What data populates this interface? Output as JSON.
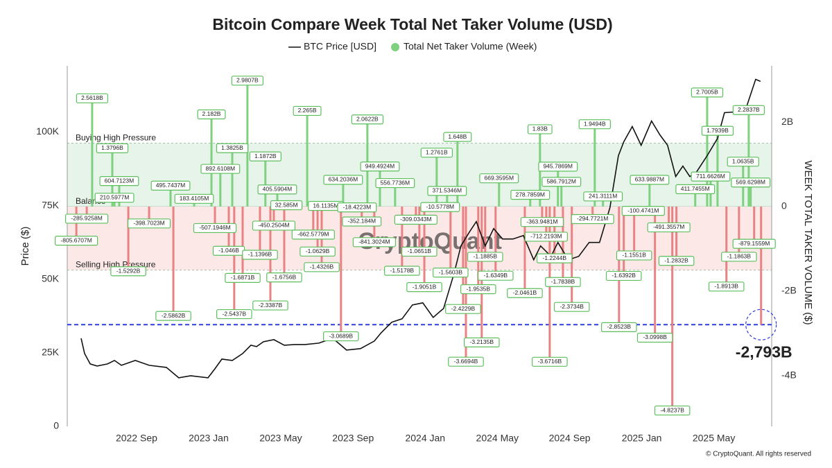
{
  "chart_data": {
    "type": "combo",
    "title": "Bitcoin Compare Week Total Net Taker Volume (USD)",
    "ylabel": "Price ($)",
    "y2label": "WEEK TOTAL TAKER VOLUME ($)",
    "xlim": [
      2022.347,
      2025.6
    ],
    "xticks": [
      {
        "value": 2022.667,
        "label": "2022 Sep"
      },
      {
        "value": 2023.0,
        "label": "2023 Jan"
      },
      {
        "value": 2023.333,
        "label": "2023 May"
      },
      {
        "value": 2023.667,
        "label": "2023 Sep"
      },
      {
        "value": 2024.0,
        "label": "2024 Jan"
      },
      {
        "value": 2024.333,
        "label": "2024 May"
      },
      {
        "value": 2024.667,
        "label": "2024 Sep"
      },
      {
        "value": 2025.0,
        "label": "2025 Jan"
      },
      {
        "value": 2025.333,
        "label": "2025 May"
      }
    ],
    "ylim": [
      0,
      122500
    ],
    "yticks": [
      0,
      {
        "value": 25000,
        "label": "25K"
      },
      {
        "value": 50000,
        "label": "50K"
      },
      {
        "value": 75000,
        "label": "75K"
      },
      {
        "value": 100000,
        "label": "100K"
      }
    ],
    "y2lim": [
      -5.2,
      3.33
    ],
    "y2ticks": [
      {
        "value": 2,
        "label": "2B"
      },
      0,
      {
        "value": -2,
        "label": "-2B"
      },
      {
        "value": -4,
        "label": "-4B"
      }
    ],
    "legend": "top",
    "series": [
      {
        "name": "BTC Price [USD]",
        "type": "line",
        "color": "#111111",
        "x": [
          2022.411,
          2022.427,
          2022.453,
          2022.485,
          2022.533,
          2022.565,
          2022.597,
          2022.661,
          2022.725,
          2022.805,
          2022.862,
          2022.917,
          2022.997,
          2023.029,
          2023.061,
          2023.109,
          2023.157,
          2023.195,
          2023.221,
          2023.253,
          2023.301,
          2023.349,
          2023.397,
          2023.445,
          2023.509,
          2023.573,
          2023.637,
          2023.701,
          2023.765,
          2023.797,
          2023.845,
          2023.893,
          2023.941,
          2023.989,
          2024.037,
          2024.085,
          2024.133,
          2024.165,
          2024.204,
          2024.236,
          2024.277,
          2024.316,
          2024.357,
          2024.405,
          2024.453,
          2024.501,
          2024.533,
          2024.581,
          2024.613,
          2024.661,
          2024.709,
          2024.757,
          2024.805,
          2024.853,
          2024.892,
          2024.917,
          2024.956,
          2024.997,
          2025.045,
          2025.084,
          2025.119,
          2025.157,
          2025.19,
          2025.222,
          2025.254,
          2025.302,
          2025.35,
          2025.382,
          2025.43,
          2025.478,
          2025.526,
          2025.548
        ],
        "values": [
          29950,
          24760,
          21230,
          20520,
          21230,
          22410,
          20760,
          22410,
          20760,
          20050,
          16510,
          17220,
          16510,
          19580,
          22880,
          22410,
          24760,
          27590,
          27120,
          28770,
          29480,
          27590,
          27830,
          27830,
          28300,
          29950,
          25940,
          26420,
          29010,
          31840,
          35380,
          36560,
          41270,
          41980,
          37030,
          40090,
          51890,
          61320,
          66040,
          69580,
          61320,
          67220,
          63680,
          63680,
          64860,
          56600,
          61320,
          57780,
          62500,
          56600,
          57780,
          62500,
          62500,
          74290,
          91980,
          96700,
          101890,
          95520,
          103770,
          99060,
          95520,
          84910,
          88440,
          84910,
          86560,
          91980,
          97880,
          106600,
          106840,
          107310,
          117930,
          117220
        ]
      },
      {
        "name": "Total Net Taker Volume (Week)",
        "type": "bar",
        "axis": "y2",
        "color": "#7fd07f",
        "negative_color": "#e98282",
        "x": [
          2022.389,
          2022.437,
          2022.462,
          2022.555,
          2022.565,
          2022.587,
          2022.629,
          2022.725,
          2022.824,
          2022.837,
          2022.933,
          2023.013,
          2023.029,
          2023.054,
          2023.093,
          2023.109,
          2023.118,
          2023.157,
          2023.179,
          2023.237,
          2023.262,
          2023.285,
          2023.301,
          2023.317,
          2023.349,
          2023.359,
          2023.455,
          2023.483,
          2023.503,
          2023.522,
          2023.541,
          2023.611,
          2023.621,
          2023.685,
          2023.707,
          2023.733,
          2023.765,
          2023.791,
          2023.861,
          2023.893,
          2023.957,
          2023.973,
          2023.996,
          2024.053,
          2024.069,
          2024.101,
          2024.117,
          2024.149,
          2024.175,
          2024.188,
          2024.245,
          2024.261,
          2024.277,
          2024.325,
          2024.341,
          2024.46,
          2024.485,
          2024.53,
          2024.54,
          2024.559,
          2024.575,
          2024.597,
          2024.613,
          2024.629,
          2024.636,
          2024.677,
          2024.773,
          2024.783,
          2024.821,
          2024.895,
          2024.917,
          2024.965,
          2025.007,
          2025.036,
          2025.061,
          2025.125,
          2025.141,
          2025.16,
          2025.247,
          2025.302,
          2025.318,
          2025.35,
          2025.391,
          2025.449,
          2025.468,
          2025.494,
          2025.503,
          2025.519
        ],
        "values": [
          -0.8056707,
          -0.2859258,
          2.5618,
          1.3796,
          0.2105977,
          0.6047123,
          -1.5292,
          -0.3987023,
          0.4957437,
          -2.5862,
          0.1834105,
          2.182,
          -0.5071946,
          0.8926108,
          -1.046,
          1.3825,
          -2.5437,
          -1.6871,
          2.9807,
          -1.1396,
          1.1872,
          -2.3387,
          -0.4502504,
          0.4055904,
          -1.6756,
          0.032585,
          2.265,
          -0.6625779,
          -1.0629,
          -1.4326,
          0.0161135,
          -3.0689,
          0.6342036,
          -0.0184223,
          -0.352184,
          2.0622,
          -0.8413024,
          0.9494924,
          0.5567736,
          -1.5178,
          -0.3090343,
          -1.0651,
          -1.9051,
          1.2761,
          -0.0105778,
          0.3715346,
          -1.5603,
          1.648,
          -2.4229,
          -3.6694,
          -1.9535,
          -3.2135,
          -1.1885,
          -1.6349,
          0.6693595,
          -2.0461,
          0.2787859,
          1.83,
          -0.3639481,
          -0.7122193,
          -3.6716,
          -1.2244,
          0.9457869,
          0.5867912,
          -1.7838,
          -2.3734,
          -0.2947721,
          1.9494,
          0.2413111,
          -2.8523,
          -1.6392,
          -1.1551,
          -0.1004741,
          0.6339887,
          -3.0998,
          -0.4913557,
          -4.8237,
          -1.2832,
          0.4117455,
          2.7005,
          0.7116626,
          1.7939,
          -1.8913,
          -1.1863,
          1.0635,
          2.2837,
          0.5696298,
          -0.8791559
        ],
        "value_labels": [
          "-805.6707M",
          "-285.9258M",
          "2.5618B",
          "1.3796B",
          "210.5977M",
          "604.7123M",
          "-1.5292B",
          "-398.7023M",
          "495.7437M",
          "-2.5862B",
          "183.4105M",
          "2.182B",
          "-507.1946M",
          "892.6108M",
          "-1.046B",
          "1.3825B",
          "-2.5437B",
          "-1.6871B",
          "2.9807B",
          "-1.1396B",
          "1.1872B",
          "-2.3387B",
          "-450.2504M",
          "405.5904M",
          "-1.6756B",
          "32.585M",
          "2.265B",
          "-662.5779M",
          "-1.0629B",
          "-1.4326B",
          "16.1135M",
          "-3.0689B",
          "634.2036M",
          "-18.4223M",
          "-352.184M",
          "2.0622B",
          "-841.3024M",
          "949.4924M",
          "556.7736M",
          "-1.5178B",
          "-309.0343M",
          "-1.0651B",
          "-1.9051B",
          "1.2761B",
          "-10.5778M",
          "371.5346M",
          "-1.5603B",
          "1.648B",
          "-2.4229B",
          "-3.6694B",
          "-1.9535B",
          "-3.2135B",
          "-1.1885B",
          "-1.6349B",
          "669.3595M",
          "-2.0461B",
          "278.7859M",
          "1.83B",
          "-363.9481M",
          "-712.2193M",
          "-3.6716B",
          "-1.2244B",
          "945.7869M",
          "586.7912M",
          "-1.7838B",
          "-2.3734B",
          "-294.7721M",
          "1.9494B",
          "241.3111M",
          "-2.8523B",
          "-1.6392B",
          "-1.1551B",
          "-100.4741M",
          "633.9887M",
          "-3.0998B",
          "-491.3557M",
          "-4.8237B",
          "-1.2832B",
          "411.7455M",
          "2.7005B",
          "711.6626M",
          "1.7939B",
          "-1.8913B",
          "-1.1863B",
          "1.0635B",
          "2.2837B",
          "569.6298M",
          "-879.1559M"
        ]
      }
    ],
    "bands": [
      {
        "label": "Buying High Pressure",
        "value": 1.5,
        "color": "#e6f4ea"
      },
      {
        "label": "Balance",
        "value": 0
      },
      {
        "label": "Selling High Pressure",
        "value": -1.5,
        "color": "#fce9e7"
      }
    ],
    "highlight": {
      "x": 2025.551,
      "value": -2.793,
      "label": "-2,793B",
      "color": "#2b3ee0"
    },
    "watermark": "CryptoQuant",
    "credit": "© CryptoQuant. All rights reserved"
  }
}
